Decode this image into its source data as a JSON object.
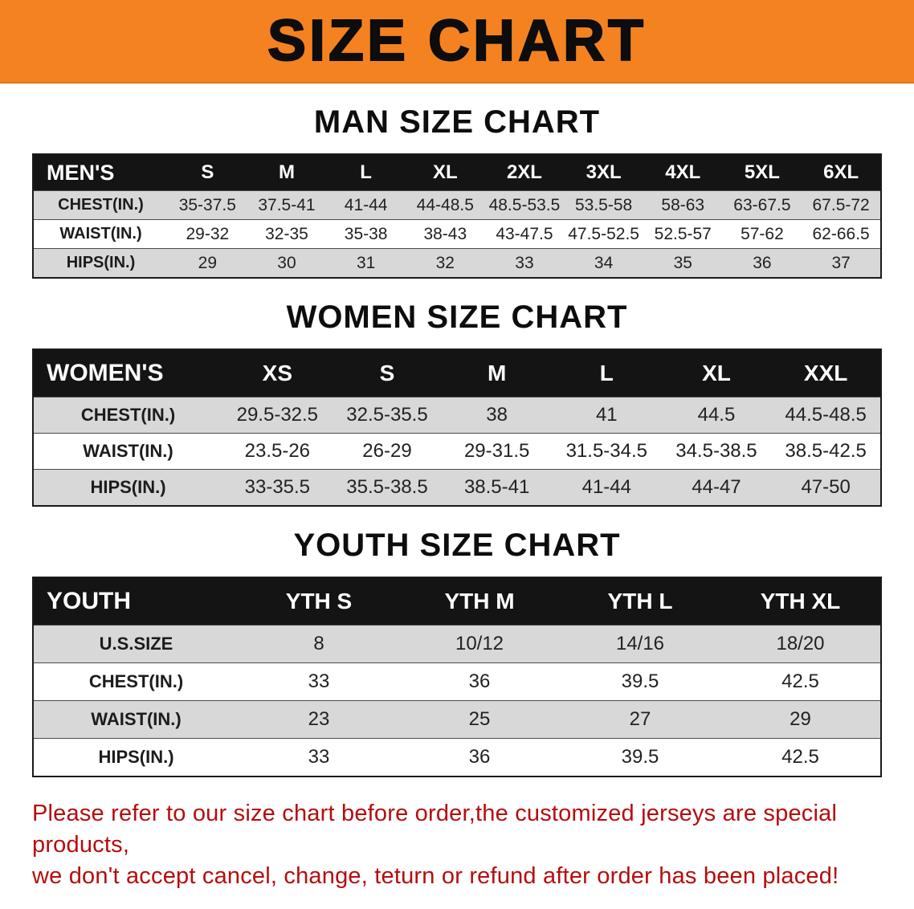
{
  "banner": {
    "title": "SIZE CHART"
  },
  "colors": {
    "banner_bg": "#f58220",
    "table_header_bg": "#141414",
    "row_alt_gray": "#d8d8d8",
    "notice_red": "#b50d0d"
  },
  "sections": [
    {
      "heading": "MAN SIZE CHART",
      "table": {
        "header": [
          "MEN'S",
          "S",
          "M",
          "L",
          "XL",
          "2XL",
          "3XL",
          "4XL",
          "5XL",
          "6XL"
        ],
        "rows": [
          [
            "CHEST(IN.)",
            "35-37.5",
            "37.5-41",
            "41-44",
            "44-48.5",
            "48.5-53.5",
            "53.5-58",
            "58-63",
            "63-67.5",
            "67.5-72"
          ],
          [
            "WAIST(IN.)",
            "29-32",
            "32-35",
            "35-38",
            "38-43",
            "43-47.5",
            "47.5-52.5",
            "52.5-57",
            "57-62",
            "62-66.5"
          ],
          [
            "HIPS(IN.)",
            "29",
            "30",
            "31",
            "32",
            "33",
            "34",
            "35",
            "36",
            "37"
          ]
        ]
      }
    },
    {
      "heading": "WOMEN SIZE CHART",
      "table": {
        "header": [
          "WOMEN'S",
          "XS",
          "S",
          "M",
          "L",
          "XL",
          "XXL"
        ],
        "rows": [
          [
            "CHEST(IN.)",
            "29.5-32.5",
            "32.5-35.5",
            "38",
            "41",
            "44.5",
            "44.5-48.5"
          ],
          [
            "WAIST(IN.)",
            "23.5-26",
            "26-29",
            "29-31.5",
            "31.5-34.5",
            "34.5-38.5",
            "38.5-42.5"
          ],
          [
            "HIPS(IN.)",
            "33-35.5",
            "35.5-38.5",
            "38.5-41",
            "41-44",
            "44-47",
            "47-50"
          ]
        ]
      }
    },
    {
      "heading": "YOUTH SIZE CHART",
      "table": {
        "header": [
          "YOUTH",
          "YTH S",
          "YTH M",
          "YTH L",
          "YTH XL"
        ],
        "rows": [
          [
            "U.S.SIZE",
            "8",
            "10/12",
            "14/16",
            "18/20"
          ],
          [
            "CHEST(IN.)",
            "33",
            "36",
            "39.5",
            "42.5"
          ],
          [
            "WAIST(IN.)",
            "23",
            "25",
            "27",
            "29"
          ],
          [
            "HIPS(IN.)",
            "33",
            "36",
            "39.5",
            "42.5"
          ]
        ]
      }
    }
  ],
  "notice": {
    "line1": "Please refer to our size chart before order,the customized jerseys are special products,",
    "line2": "we don't accept cancel, change, teturn or refund after order has been placed!"
  }
}
